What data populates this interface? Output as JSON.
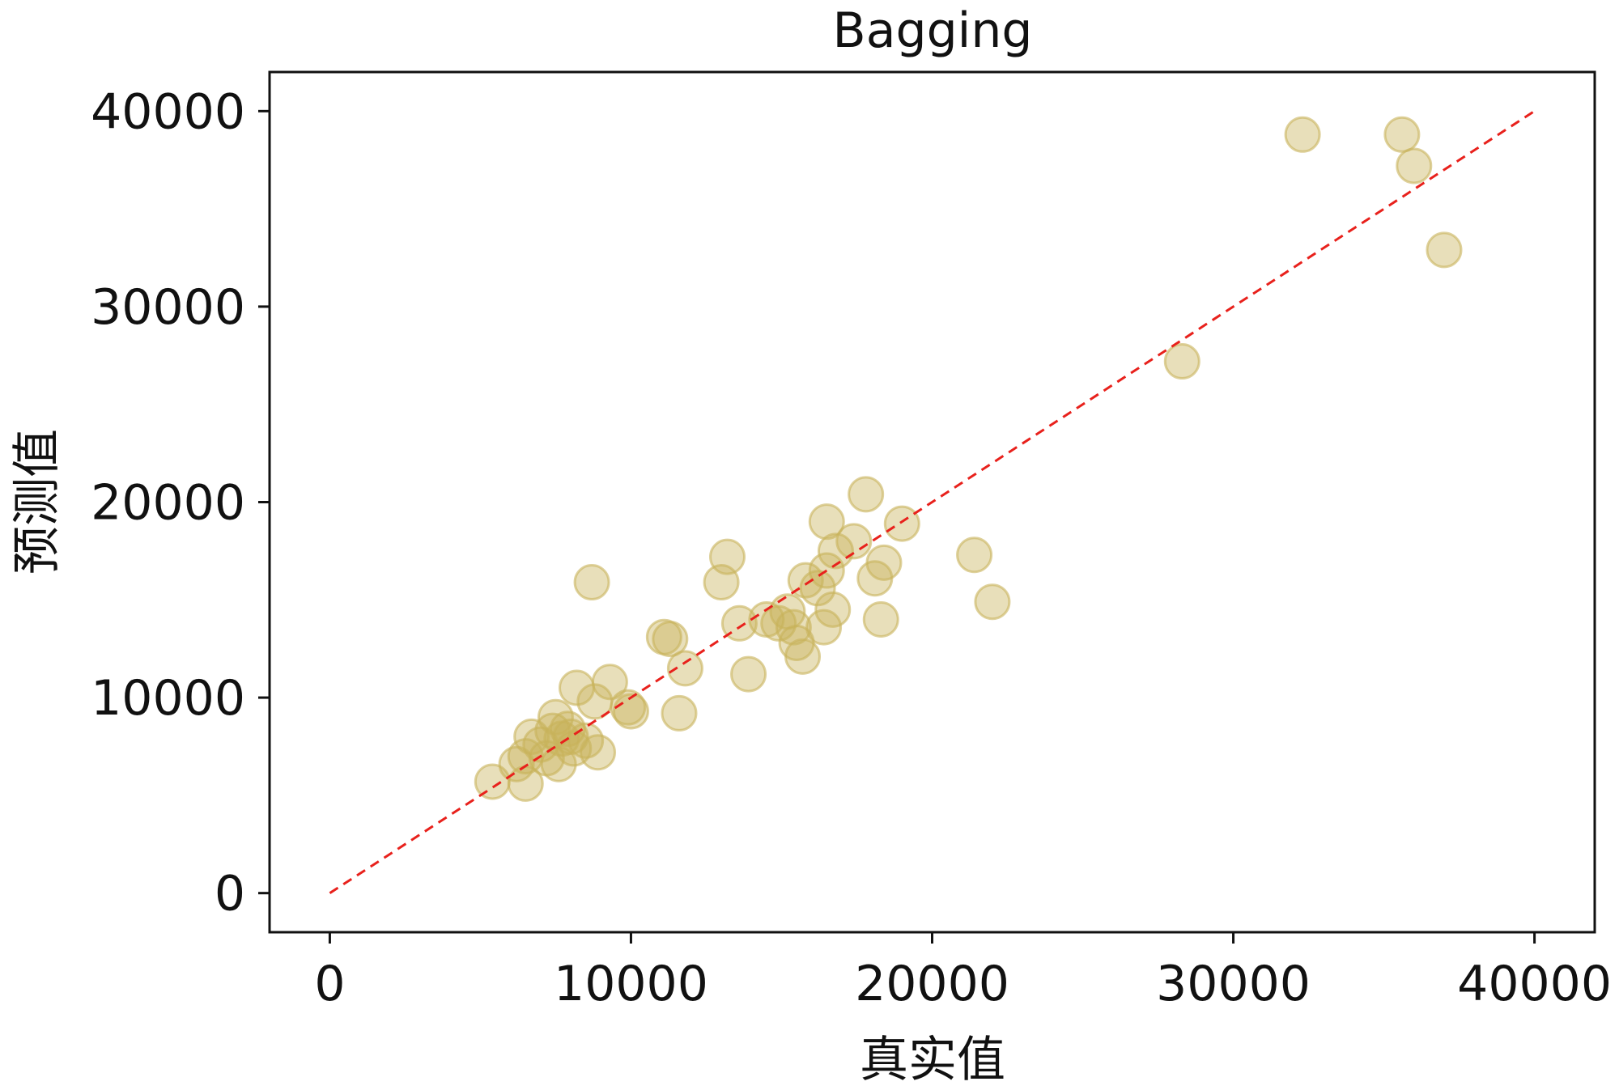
{
  "chart_data": {
    "type": "scatter",
    "title": "Bagging",
    "xlabel": "真实值",
    "ylabel": "预测值",
    "xlim": [
      -2000,
      42000
    ],
    "ylim": [
      -2000,
      42000
    ],
    "xticks": [
      0,
      10000,
      20000,
      30000,
      40000
    ],
    "yticks": [
      0,
      10000,
      20000,
      30000,
      40000
    ],
    "x_tick_labels": [
      "0",
      "10000",
      "20000",
      "30000",
      "40000"
    ],
    "y_tick_labels": [
      "0",
      "10000",
      "20000",
      "30000",
      "40000"
    ],
    "grid": false,
    "legend": "none",
    "reference_line": {
      "x": [
        0,
        40000
      ],
      "y": [
        0,
        40000
      ],
      "style": "dashed",
      "color": "#e8211c"
    },
    "marker_color": "#c8b35a",
    "points": [
      {
        "x": 5400,
        "y": 5700
      },
      {
        "x": 6200,
        "y": 6600
      },
      {
        "x": 6500,
        "y": 7000
      },
      {
        "x": 6500,
        "y": 5600
      },
      {
        "x": 6700,
        "y": 8000
      },
      {
        "x": 7000,
        "y": 7600
      },
      {
        "x": 7200,
        "y": 6900
      },
      {
        "x": 7400,
        "y": 8300
      },
      {
        "x": 7500,
        "y": 9000
      },
      {
        "x": 7600,
        "y": 6600
      },
      {
        "x": 7700,
        "y": 7900
      },
      {
        "x": 7900,
        "y": 8400
      },
      {
        "x": 8000,
        "y": 8000
      },
      {
        "x": 8100,
        "y": 7400
      },
      {
        "x": 8200,
        "y": 10500
      },
      {
        "x": 8500,
        "y": 7800
      },
      {
        "x": 8700,
        "y": 15900
      },
      {
        "x": 8800,
        "y": 9800
      },
      {
        "x": 8900,
        "y": 7200
      },
      {
        "x": 9300,
        "y": 10800
      },
      {
        "x": 9900,
        "y": 9500
      },
      {
        "x": 10000,
        "y": 9300
      },
      {
        "x": 11100,
        "y": 13100
      },
      {
        "x": 11300,
        "y": 13000
      },
      {
        "x": 11600,
        "y": 9200
      },
      {
        "x": 11800,
        "y": 11500
      },
      {
        "x": 13000,
        "y": 15900
      },
      {
        "x": 13200,
        "y": 17200
      },
      {
        "x": 13600,
        "y": 13800
      },
      {
        "x": 13900,
        "y": 11200
      },
      {
        "x": 14500,
        "y": 14000
      },
      {
        "x": 14900,
        "y": 13800
      },
      {
        "x": 15200,
        "y": 14400
      },
      {
        "x": 15400,
        "y": 13600
      },
      {
        "x": 15500,
        "y": 12800
      },
      {
        "x": 15700,
        "y": 12100
      },
      {
        "x": 15800,
        "y": 16000
      },
      {
        "x": 16200,
        "y": 15600
      },
      {
        "x": 16400,
        "y": 13600
      },
      {
        "x": 16500,
        "y": 16500
      },
      {
        "x": 16500,
        "y": 19000
      },
      {
        "x": 16700,
        "y": 14500
      },
      {
        "x": 16800,
        "y": 17500
      },
      {
        "x": 17400,
        "y": 18000
      },
      {
        "x": 17800,
        "y": 20400
      },
      {
        "x": 18100,
        "y": 16100
      },
      {
        "x": 18300,
        "y": 14000
      },
      {
        "x": 18400,
        "y": 16900
      },
      {
        "x": 19000,
        "y": 18900
      },
      {
        "x": 21400,
        "y": 17300
      },
      {
        "x": 22000,
        "y": 14900
      },
      {
        "x": 28300,
        "y": 27200
      },
      {
        "x": 32300,
        "y": 38800
      },
      {
        "x": 35600,
        "y": 38800
      },
      {
        "x": 36000,
        "y": 37200
      },
      {
        "x": 37000,
        "y": 32900
      }
    ]
  }
}
